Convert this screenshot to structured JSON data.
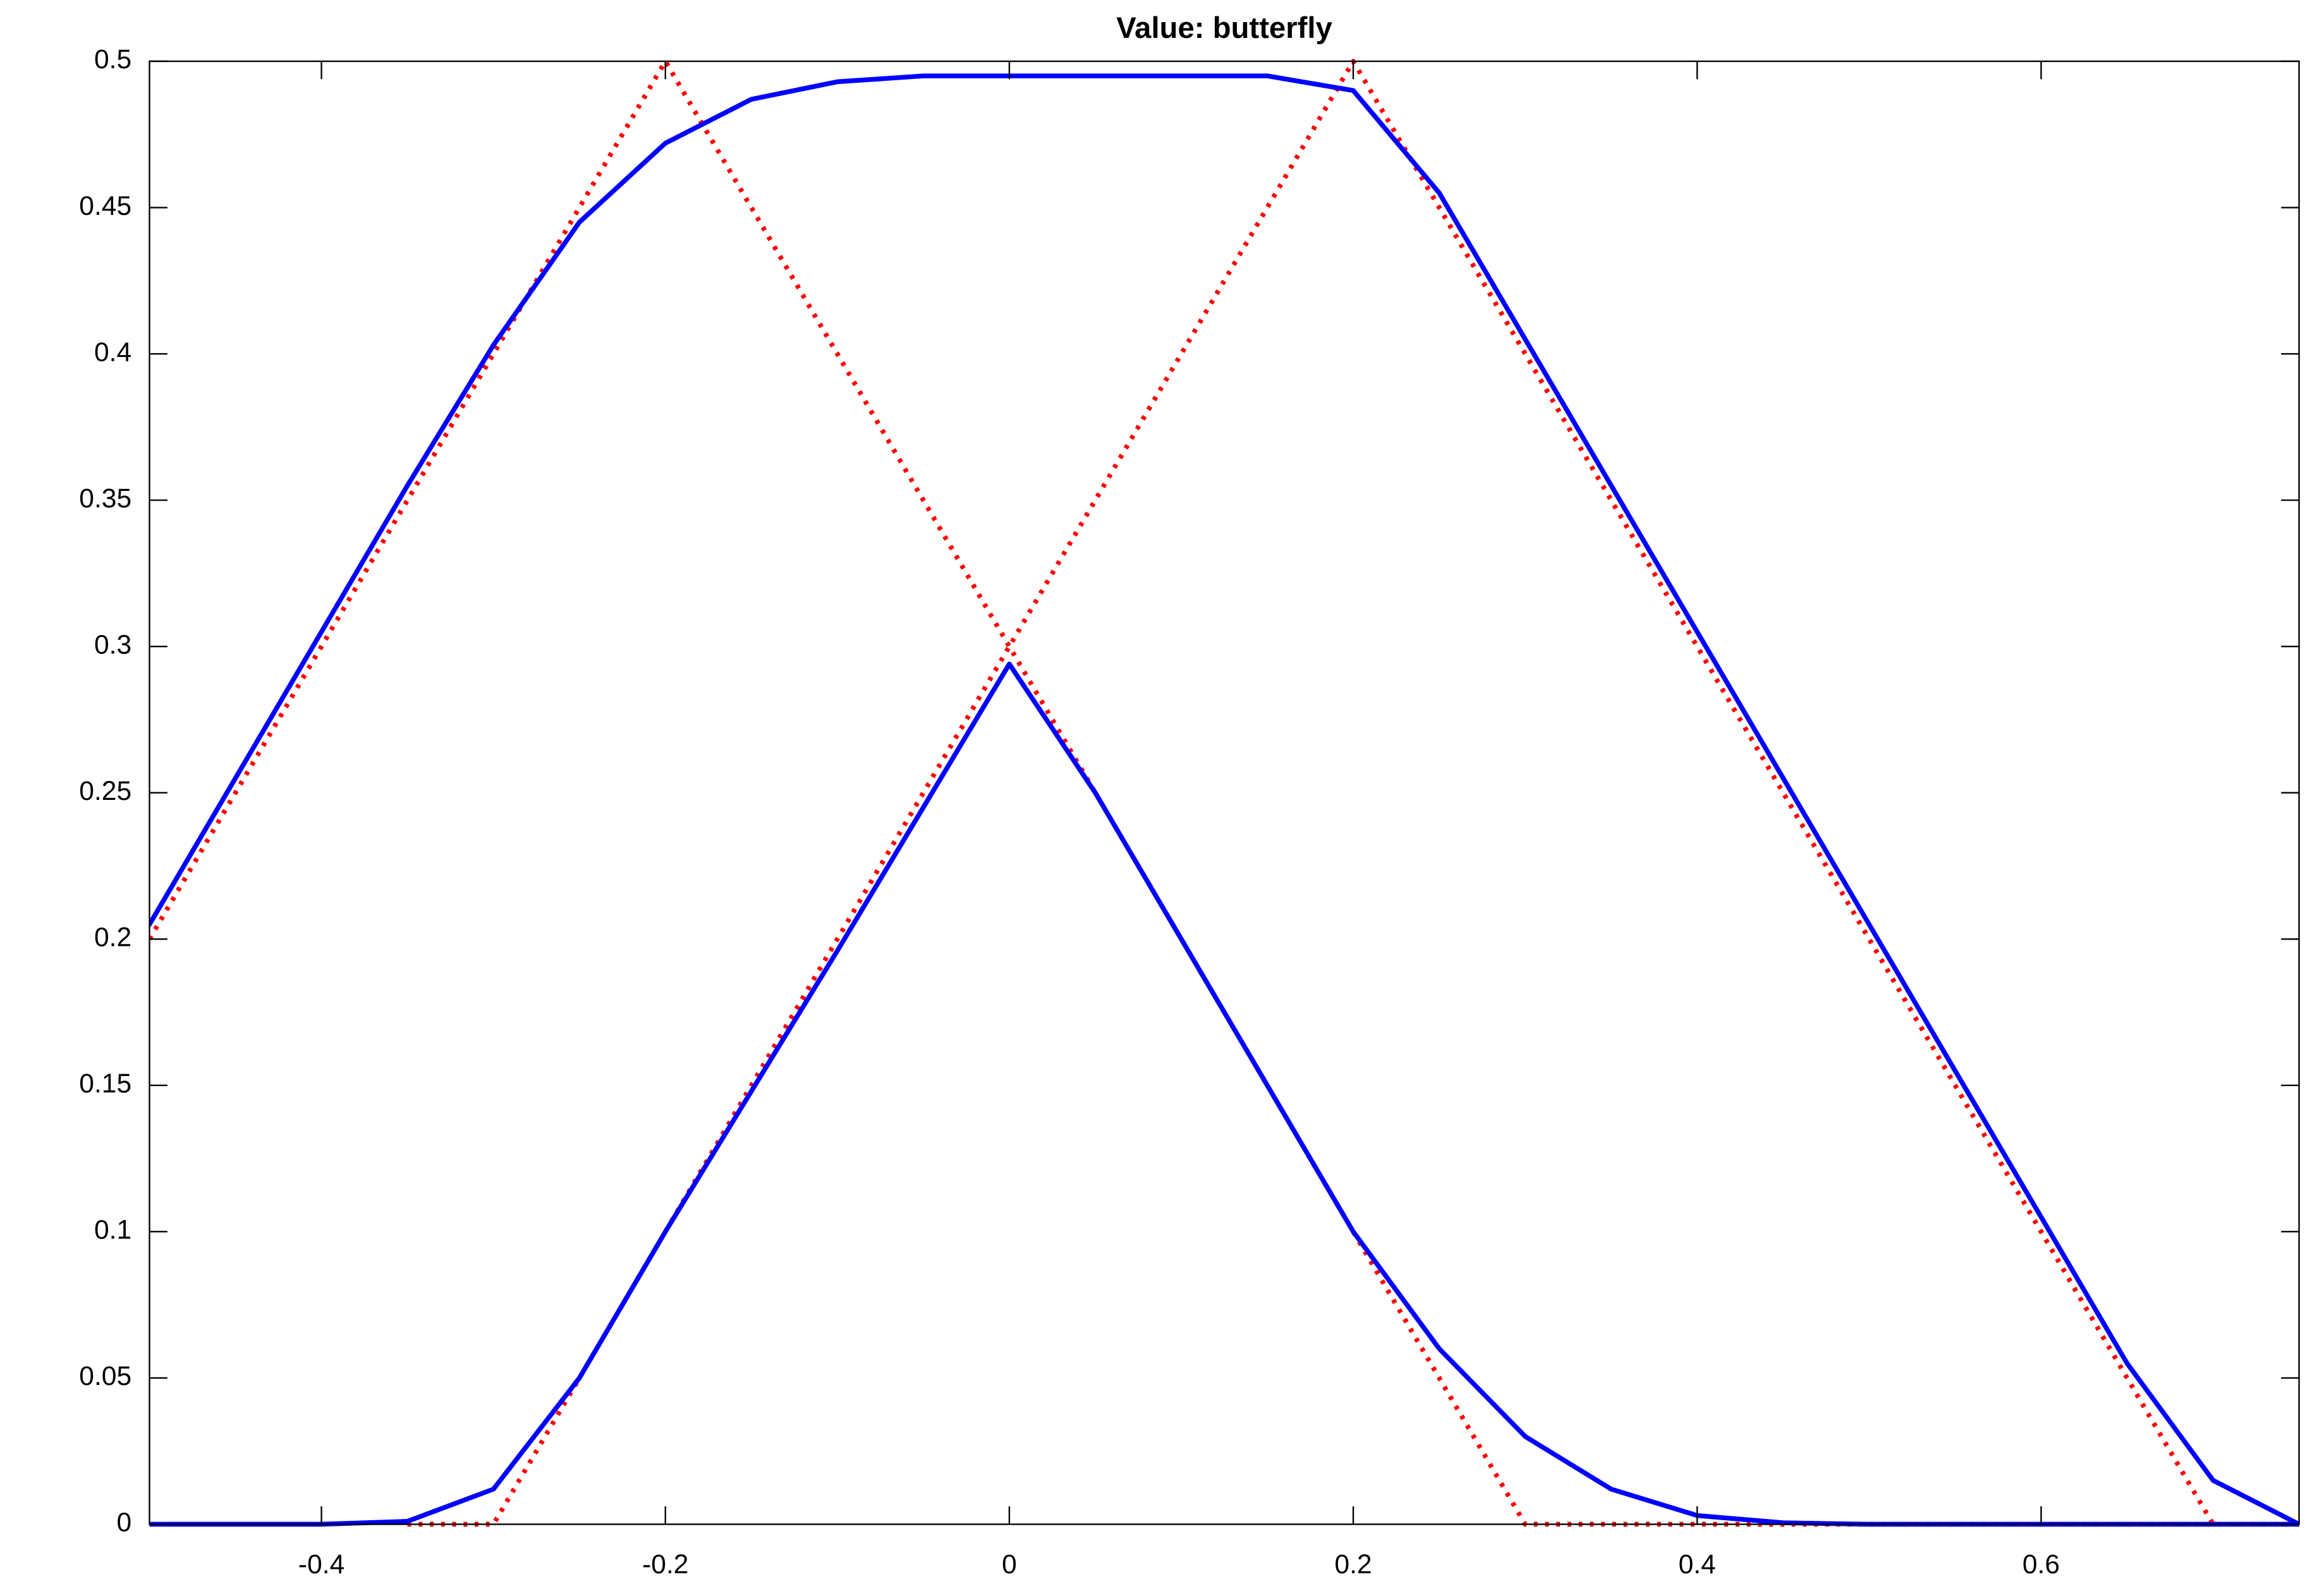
{
  "chart_data": {
    "type": "line",
    "title": "Value: butterfly",
    "xlim": [
      -0.5,
      0.75
    ],
    "ylim": [
      0,
      0.5
    ],
    "xticks": [
      -0.4,
      -0.2,
      0,
      0.2,
      0.4,
      0.6
    ],
    "yticks": [
      0,
      0.05,
      0.1,
      0.15,
      0.2,
      0.25,
      0.3,
      0.35,
      0.4,
      0.45,
      0.5
    ],
    "grid": false,
    "series": [
      {
        "color": "#ff0000",
        "linestyle": "dotted",
        "x": [
          -0.5,
          -0.2,
          0.3,
          0.75
        ],
        "values": [
          0.2,
          0.5,
          0,
          0
        ]
      },
      {
        "color": "#ff0000",
        "linestyle": "dotted",
        "x": [
          -0.35,
          -0.3,
          0.2,
          0.7
        ],
        "values": [
          0,
          0,
          0.5,
          0
        ]
      },
      {
        "color": "#0000ff",
        "linestyle": "solid",
        "x": [
          -0.5,
          -0.45,
          -0.4,
          -0.35,
          -0.3,
          -0.25,
          -0.2,
          -0.15,
          -0.1,
          -0.05,
          0,
          0.05,
          0.1,
          0.15,
          0.2,
          0.25,
          0.3,
          0.35,
          0.4,
          0.45,
          0.5,
          0.55,
          0.6,
          0.65,
          0.7,
          0.75
        ],
        "values": [
          0.205,
          0.255,
          0.305,
          0.355,
          0.403,
          0.445,
          0.472,
          0.487,
          0.493,
          0.495,
          0.495,
          0.495,
          0.495,
          0.495,
          0.49,
          0.455,
          0.405,
          0.355,
          0.305,
          0.255,
          0.205,
          0.155,
          0.105,
          0.055,
          0.015,
          0
        ]
      },
      {
        "color": "#0000ff",
        "linestyle": "solid",
        "x": [
          -0.5,
          -0.4,
          -0.35,
          -0.3,
          -0.25,
          -0.2,
          -0.15,
          -0.1,
          -0.05,
          0,
          0.05,
          0.1,
          0.15,
          0.2,
          0.25,
          0.3,
          0.35,
          0.4,
          0.45,
          0.5,
          0.6,
          0.75
        ],
        "values": [
          0,
          0,
          0.001,
          0.012,
          0.05,
          0.1,
          0.148,
          0.196,
          0.245,
          0.294,
          0.25,
          0.2,
          0.15,
          0.1,
          0.06,
          0.03,
          0.012,
          0.003,
          0.0005,
          0,
          0,
          0
        ]
      }
    ]
  }
}
